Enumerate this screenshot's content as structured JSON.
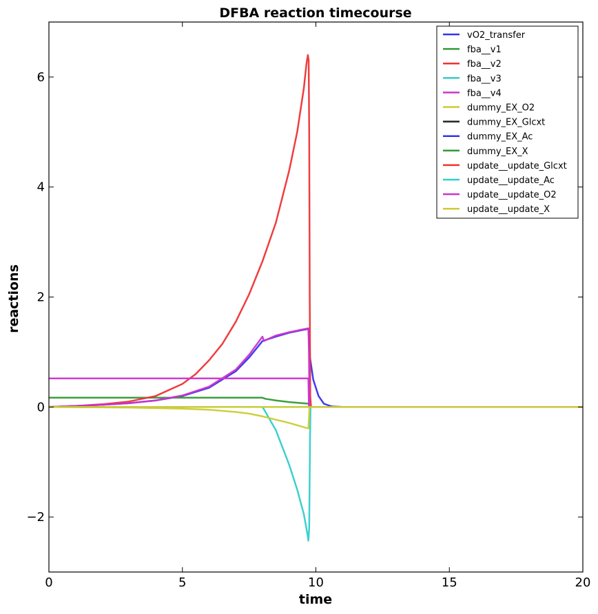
{
  "chart_data": {
    "type": "line",
    "title": "DFBA reaction timecourse",
    "xlabel": "time",
    "ylabel": "reactions",
    "xlim": [
      0,
      20
    ],
    "ylim": [
      -3,
      7
    ],
    "xticks": [
      0,
      5,
      10,
      15,
      20
    ],
    "yticks": [
      -2,
      0,
      2,
      4,
      6
    ],
    "ytick_labels": [
      "−2",
      "0",
      "2",
      "4",
      "6"
    ],
    "grid": false,
    "legend_position": "top-right",
    "series": [
      {
        "name": "vO2_transfer",
        "color": "#3333ee",
        "points": [
          [
            0,
            0
          ],
          [
            1,
            0.02
          ],
          [
            2,
            0.04
          ],
          [
            3,
            0.07
          ],
          [
            4,
            0.12
          ],
          [
            5,
            0.2
          ],
          [
            6,
            0.35
          ],
          [
            7,
            0.65
          ],
          [
            7.5,
            0.9
          ],
          [
            8,
            1.2
          ],
          [
            8.5,
            1.28
          ],
          [
            9,
            1.35
          ],
          [
            9.5,
            1.4
          ],
          [
            9.72,
            1.42
          ],
          [
            9.78,
            0.9
          ],
          [
            9.9,
            0.5
          ],
          [
            10.1,
            0.2
          ],
          [
            10.3,
            0.06
          ],
          [
            10.6,
            0.01
          ],
          [
            11,
            0
          ],
          [
            20,
            0
          ]
        ]
      },
      {
        "name": "fba__v1",
        "color": "#339933",
        "points": [
          [
            0,
            0.17
          ],
          [
            8,
            0.17
          ],
          [
            8.1,
            0.15
          ],
          [
            8.5,
            0.12
          ],
          [
            9,
            0.09
          ],
          [
            9.5,
            0.07
          ],
          [
            9.75,
            0.06
          ],
          [
            9.76,
            0
          ],
          [
            20,
            0
          ]
        ]
      },
      {
        "name": "fba__v2",
        "color": "#ee3333",
        "points": [
          [
            0,
            0
          ],
          [
            1,
            0.02
          ],
          [
            2,
            0.05
          ],
          [
            3,
            0.1
          ],
          [
            4,
            0.2
          ],
          [
            5,
            0.42
          ],
          [
            5.5,
            0.6
          ],
          [
            6,
            0.85
          ],
          [
            6.5,
            1.15
          ],
          [
            7,
            1.55
          ],
          [
            7.5,
            2.05
          ],
          [
            8,
            2.65
          ],
          [
            8.5,
            3.35
          ],
          [
            9,
            4.3
          ],
          [
            9.3,
            5.0
          ],
          [
            9.55,
            5.8
          ],
          [
            9.65,
            6.25
          ],
          [
            9.7,
            6.4
          ],
          [
            9.73,
            6.3
          ],
          [
            9.75,
            5
          ],
          [
            9.77,
            2
          ],
          [
            9.79,
            0.2
          ],
          [
            9.82,
            0
          ],
          [
            20,
            0
          ]
        ]
      },
      {
        "name": "fba__v3",
        "color": "#33cccc",
        "points": [
          [
            0,
            0
          ],
          [
            8,
            0
          ],
          [
            8.1,
            -0.08
          ],
          [
            8.5,
            -0.42
          ],
          [
            9,
            -1.05
          ],
          [
            9.3,
            -1.5
          ],
          [
            9.55,
            -1.95
          ],
          [
            9.68,
            -2.3
          ],
          [
            9.72,
            -2.43
          ],
          [
            9.75,
            -2.2
          ],
          [
            9.78,
            -0.6
          ],
          [
            9.8,
            0
          ],
          [
            20,
            0
          ]
        ]
      },
      {
        "name": "fba__v4",
        "color": "#cc33cc",
        "points": [
          [
            0,
            0
          ],
          [
            1,
            0.02
          ],
          [
            2,
            0.04
          ],
          [
            3,
            0.07
          ],
          [
            4,
            0.12
          ],
          [
            5,
            0.21
          ],
          [
            6,
            0.37
          ],
          [
            7,
            0.68
          ],
          [
            7.5,
            0.95
          ],
          [
            8,
            1.28
          ],
          [
            8.05,
            1.2
          ],
          [
            8.5,
            1.3
          ],
          [
            9,
            1.36
          ],
          [
            9.5,
            1.41
          ],
          [
            9.72,
            1.43
          ],
          [
            9.74,
            1.0
          ],
          [
            9.76,
            0
          ],
          [
            20,
            0
          ]
        ]
      },
      {
        "name": "dummy_EX_O2",
        "color": "#cccc33",
        "points": [
          [
            0,
            0
          ],
          [
            3,
            -0.01
          ],
          [
            5,
            -0.03
          ],
          [
            6,
            -0.05
          ],
          [
            7,
            -0.09
          ],
          [
            7.5,
            -0.12
          ],
          [
            8,
            -0.17
          ],
          [
            8.5,
            -0.23
          ],
          [
            9,
            -0.29
          ],
          [
            9.5,
            -0.36
          ],
          [
            9.72,
            -0.39
          ],
          [
            9.74,
            -0.2
          ],
          [
            9.76,
            0
          ],
          [
            20,
            0
          ]
        ]
      },
      {
        "name": "dummy_EX_Glcxt",
        "color": "#222222",
        "points": [
          [
            0,
            0
          ],
          [
            20,
            0
          ]
        ]
      },
      {
        "name": "dummy_EX_Ac",
        "color": "#3333ee",
        "points": [
          [
            0,
            0
          ],
          [
            20,
            0
          ]
        ]
      },
      {
        "name": "dummy_EX_X",
        "color": "#339933",
        "points": [
          [
            0,
            0
          ],
          [
            20,
            0
          ]
        ]
      },
      {
        "name": "update__update_Glcxt",
        "color": "#ee3333",
        "points": [
          [
            0,
            0
          ],
          [
            20,
            0
          ]
        ]
      },
      {
        "name": "update__update_Ac",
        "color": "#33cccc",
        "points": [
          [
            0,
            0
          ],
          [
            20,
            0
          ]
        ]
      },
      {
        "name": "update__update_O2",
        "color": "#cc33cc",
        "points": [
          [
            0,
            0.52
          ],
          [
            9.7,
            0.52
          ],
          [
            9.72,
            0.5
          ],
          [
            9.74,
            0
          ],
          [
            20,
            0
          ]
        ]
      },
      {
        "name": "update__update_X",
        "color": "#cccc33",
        "points": [
          [
            0,
            0
          ],
          [
            20,
            0
          ]
        ]
      }
    ]
  }
}
